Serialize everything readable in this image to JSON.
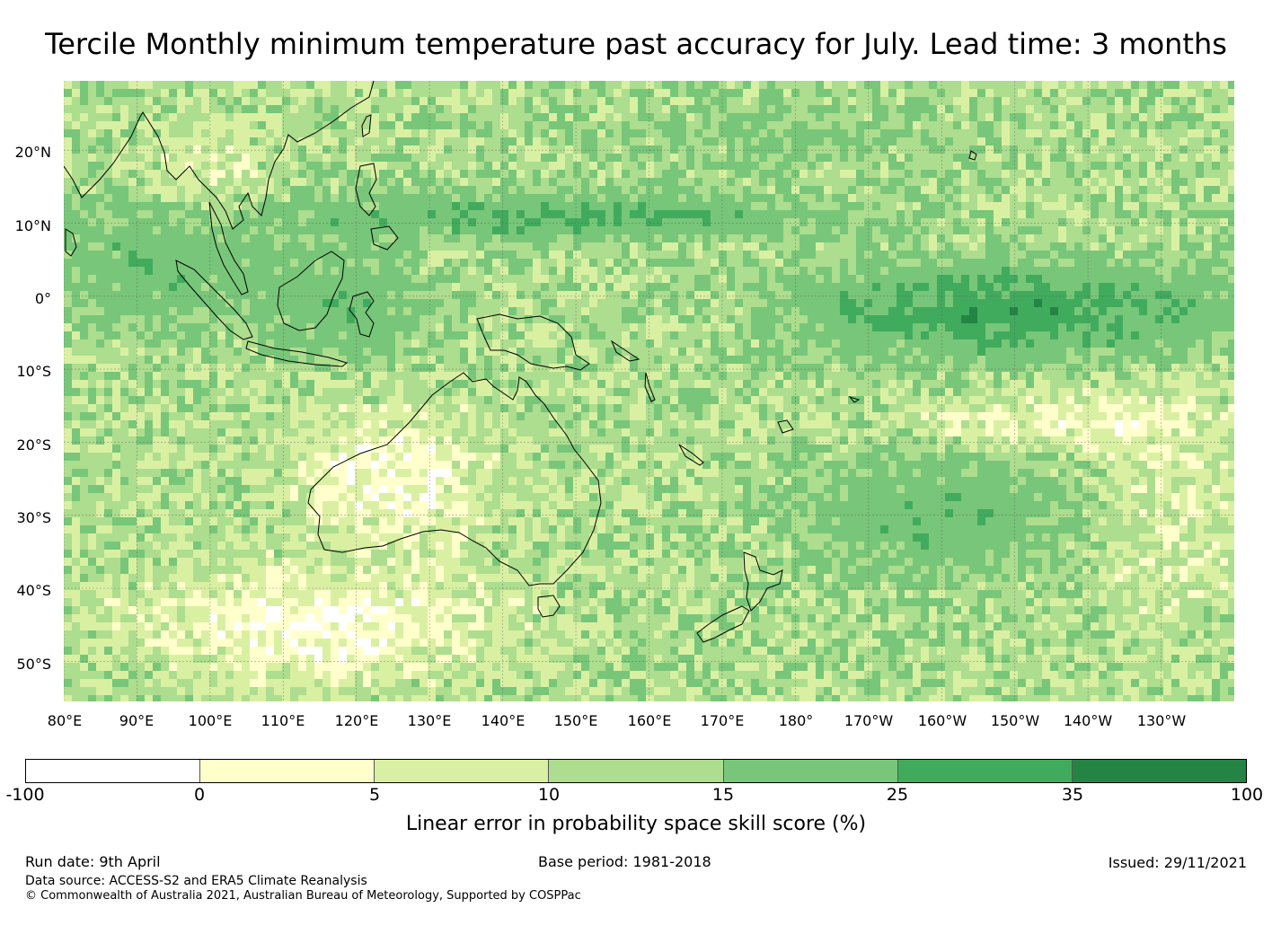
{
  "title": "Tercile Monthly minimum temperature past accuracy for July. Lead time: 3 months",
  "map": {
    "lat_labels": [
      "20°N",
      "10°N",
      "0°",
      "10°S",
      "20°S",
      "30°S",
      "40°S",
      "50°S"
    ],
    "lon_labels": [
      "80°E",
      "90°E",
      "100°E",
      "110°E",
      "120°E",
      "130°E",
      "140°E",
      "150°E",
      "160°E",
      "170°E",
      "180°",
      "170°W",
      "160°W",
      "150°W",
      "140°W",
      "130°W"
    ],
    "lat_values": [
      20,
      10,
      0,
      -10,
      -20,
      -30,
      -40,
      -50
    ],
    "lon_values": [
      80,
      90,
      100,
      110,
      120,
      130,
      140,
      150,
      160,
      170,
      180,
      190,
      200,
      210,
      220,
      230
    ],
    "extent": {
      "lon_min": 80,
      "lon_max": 240,
      "lat_min": -55.5,
      "lat_max": 29.5
    },
    "gridlines": true,
    "coastline_color": "#000000"
  },
  "colorbar": {
    "ticks": [
      "-100",
      "0",
      "5",
      "10",
      "15",
      "25",
      "35",
      "100"
    ],
    "colors": [
      "#ffffff",
      "#ffffcc",
      "#d9f0a3",
      "#addd8e",
      "#78c679",
      "#41ab5d",
      "#238443"
    ],
    "label": "Linear error in probability space skill score (%)"
  },
  "footer": {
    "run_date": "Run date: 9th April",
    "base_period": "Base period: 1981-2018",
    "issued": "Issued: 29/11/2021",
    "data_source": "Data source: ACCESS-S2 and ERA5 Climate Reanalysis",
    "copyright": "© Commonwealth of Australia 2021, Australian Bureau of Meteorology, Supported by COSPPac"
  }
}
